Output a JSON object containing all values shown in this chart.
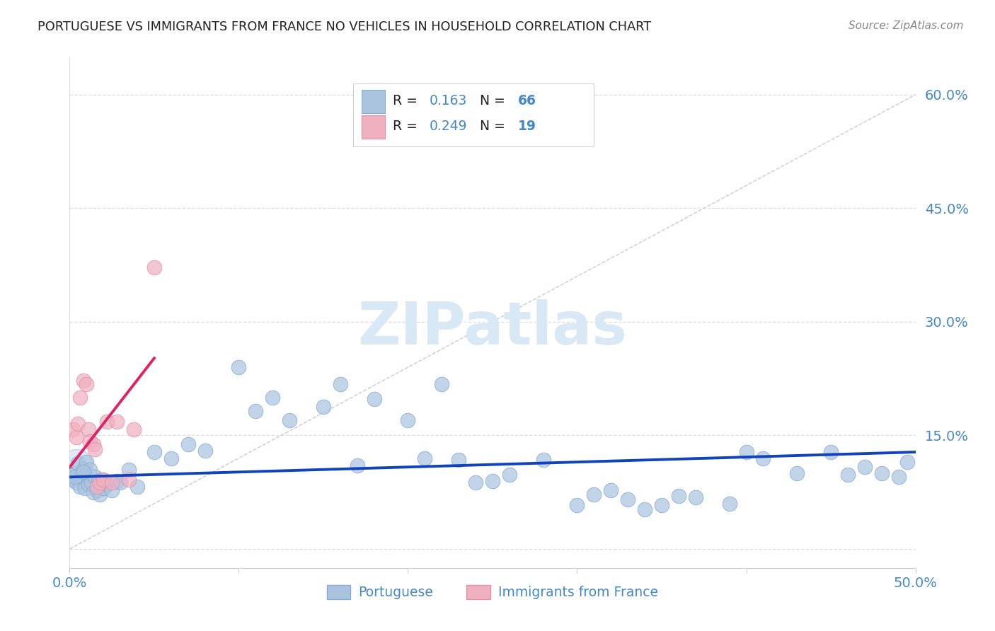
{
  "title": "PORTUGUESE VS IMMIGRANTS FROM FRANCE NO VEHICLES IN HOUSEHOLD CORRELATION CHART",
  "source": "Source: ZipAtlas.com",
  "xlim": [
    0.0,
    0.5
  ],
  "ylim": [
    -0.025,
    0.65
  ],
  "ylabel_ticks": [
    0.0,
    0.15,
    0.3,
    0.45,
    0.6
  ],
  "ylabel_tick_labels": [
    "",
    "15.0%",
    "30.0%",
    "45.0%",
    "60.0%"
  ],
  "xtick_positions": [
    0.0,
    0.1,
    0.2,
    0.3,
    0.4,
    0.5
  ],
  "xtick_labels": [
    "0.0%",
    "",
    "",
    "",
    "",
    "50.0%"
  ],
  "blue_face": "#aac4e0",
  "blue_edge": "#88aad0",
  "pink_face": "#f0b0c0",
  "pink_edge": "#e090a8",
  "blue_line": "#1144bb",
  "pink_line": "#dd2266",
  "diag_color": "#ccbbcc",
  "grid_color": "#dddddd",
  "axis_tick_color": "#4488cc",
  "title_color": "#222222",
  "source_color": "#888888",
  "ylabel_color": "#333333",
  "watermark_color": "#d8e8f5",
  "legend_r_color": "#4488cc",
  "legend_n_color": "#4488cc",
  "legend_text_color": "#222222",
  "port_x": [
    0.001,
    0.002,
    0.003,
    0.004,
    0.005,
    0.006,
    0.007,
    0.008,
    0.009,
    0.01,
    0.011,
    0.012,
    0.013,
    0.014,
    0.015,
    0.016,
    0.017,
    0.018,
    0.019,
    0.02,
    0.022,
    0.025,
    0.028,
    0.03,
    0.035,
    0.04,
    0.05,
    0.06,
    0.07,
    0.08,
    0.1,
    0.11,
    0.12,
    0.13,
    0.15,
    0.16,
    0.17,
    0.18,
    0.2,
    0.21,
    0.22,
    0.23,
    0.24,
    0.25,
    0.26,
    0.28,
    0.3,
    0.31,
    0.32,
    0.33,
    0.34,
    0.35,
    0.36,
    0.37,
    0.39,
    0.4,
    0.41,
    0.43,
    0.45,
    0.46,
    0.47,
    0.48,
    0.49,
    0.495,
    0.003,
    0.008
  ],
  "port_y": [
    0.097,
    0.092,
    0.1,
    0.088,
    0.113,
    0.082,
    0.095,
    0.106,
    0.08,
    0.115,
    0.085,
    0.105,
    0.088,
    0.075,
    0.095,
    0.078,
    0.09,
    0.072,
    0.092,
    0.08,
    0.085,
    0.078,
    0.09,
    0.088,
    0.105,
    0.082,
    0.128,
    0.12,
    0.138,
    0.13,
    0.24,
    0.182,
    0.2,
    0.17,
    0.188,
    0.218,
    0.11,
    0.198,
    0.17,
    0.12,
    0.218,
    0.118,
    0.088,
    0.09,
    0.098,
    0.118,
    0.058,
    0.072,
    0.078,
    0.065,
    0.052,
    0.058,
    0.07,
    0.068,
    0.06,
    0.128,
    0.12,
    0.1,
    0.128,
    0.098,
    0.108,
    0.1,
    0.095,
    0.115,
    0.095,
    0.102
  ],
  "fr_x": [
    0.002,
    0.004,
    0.005,
    0.006,
    0.008,
    0.01,
    0.011,
    0.012,
    0.014,
    0.015,
    0.016,
    0.018,
    0.02,
    0.022,
    0.025,
    0.028,
    0.035,
    0.038,
    0.05
  ],
  "fr_y": [
    0.158,
    0.148,
    0.165,
    0.2,
    0.222,
    0.218,
    0.158,
    0.142,
    0.138,
    0.132,
    0.082,
    0.088,
    0.092,
    0.168,
    0.088,
    0.168,
    0.092,
    0.158,
    0.372
  ],
  "port_trend_x": [
    0.0,
    0.5
  ],
  "port_trend_y": [
    0.095,
    0.128
  ],
  "fr_trend_x": [
    0.0,
    0.05
  ],
  "fr_trend_y": [
    0.108,
    0.252
  ]
}
